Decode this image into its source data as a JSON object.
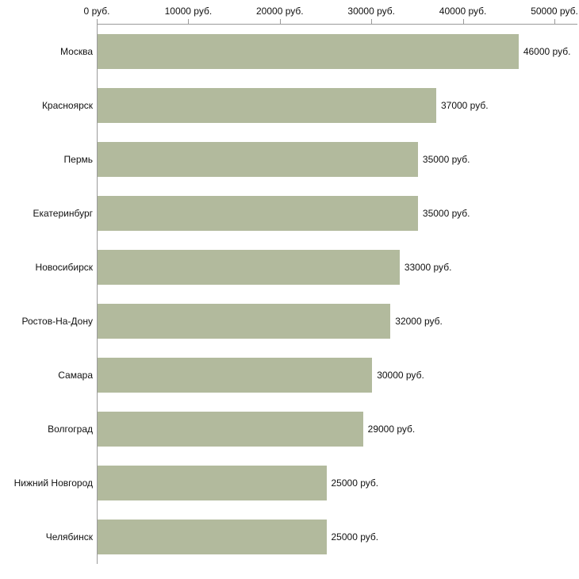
{
  "chart_data": {
    "type": "bar",
    "orientation": "horizontal",
    "title": "",
    "xlabel": "",
    "ylabel": "",
    "xlim": [
      0,
      50000
    ],
    "grid": false,
    "legend": false,
    "x_ticks": [
      0,
      10000,
      20000,
      30000,
      40000,
      50000
    ],
    "x_tick_labels": [
      "0 руб.",
      "10000 руб.",
      "20000 руб.",
      "30000 руб.",
      "40000 руб.",
      "50000 руб."
    ],
    "categories": [
      "Москва",
      "Красноярск",
      "Пермь",
      "Екатеринбург",
      "Новосибирск",
      "Ростов-На-Дону",
      "Самара",
      "Волгоград",
      "Нижний Новгород",
      "Челябинск"
    ],
    "values": [
      46000,
      37000,
      35000,
      35000,
      33000,
      32000,
      30000,
      29000,
      25000,
      25000
    ],
    "value_labels": [
      "46000 руб.",
      "37000 руб.",
      "35000 руб.",
      "35000 руб.",
      "33000 руб.",
      "32000 руб.",
      "30000 руб.",
      "29000 руб.",
      "25000 руб.",
      "25000 руб."
    ],
    "bar_color": "#b2ba9d",
    "axis_color": "#9a9a9a",
    "text_color": "#111111"
  }
}
